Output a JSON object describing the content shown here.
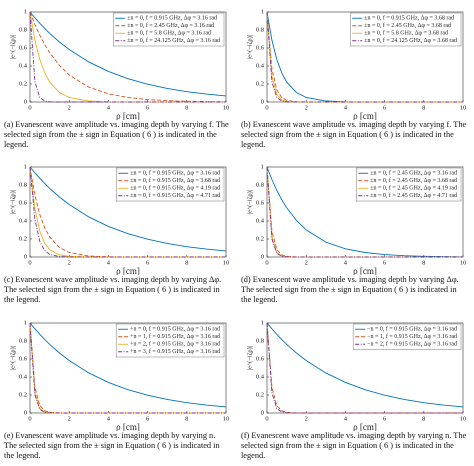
{
  "chart_data": [
    {
      "type": "line",
      "xlabel": "ρ [cm]",
      "ylabel": "|e^(−iζρ)|",
      "legend": "upper right",
      "grid": false,
      "xlim": [
        0,
        10
      ],
      "ylim": [
        0,
        1
      ],
      "xticks": [
        0,
        2,
        4,
        6,
        8,
        10
      ],
      "yticks": [
        0,
        0.2,
        0.4,
        0.6,
        0.8,
        1
      ],
      "x": [
        0,
        0.25,
        0.5,
        0.75,
        1,
        1.5,
        2,
        3,
        4,
        5,
        6,
        7,
        8,
        9,
        10
      ],
      "series": [
        {
          "name": "±n = 0, f = 0.915 GHz, Δφ = 3.16 rad",
          "color": "#0072bd",
          "dash": "none",
          "values": [
            1,
            0.935,
            0.874,
            0.817,
            0.763,
            0.667,
            0.583,
            0.445,
            0.34,
            0.259,
            0.198,
            0.151,
            0.115,
            0.088,
            0.067
          ]
        },
        {
          "name": "±n = 0, f = 2.45 GHz, Δφ = 3.16 rad",
          "color": "#d95319",
          "dash": "4,2",
          "values": [
            1,
            0.861,
            0.741,
            0.638,
            0.549,
            0.407,
            0.301,
            0.165,
            0.091,
            0.05,
            0.027,
            0.015,
            0.008,
            0.005,
            0.002
          ]
        },
        {
          "name": "±n = 0, f = 5.8 GHz, Δφ = 3.16 rad",
          "color": "#edb120",
          "dash": "none",
          "values": [
            1,
            0.687,
            0.472,
            0.325,
            0.223,
            0.105,
            0.05,
            0.011,
            0.002,
            0,
            0,
            0,
            0,
            0,
            0
          ]
        },
        {
          "name": "±n = 0, f = 24.125 GHz, Δφ = 3.16 rad",
          "color": "#7e2f8e",
          "dash": "4,1.5,1,1.5",
          "values": [
            1,
            0.223,
            0.05,
            0.011,
            0.002,
            0,
            0,
            0,
            0,
            0,
            0,
            0,
            0,
            0,
            0
          ]
        }
      ],
      "caption": "(a) Evanescent wave amplitude vs. imaging depth by varying f. The selected sign from the ± sign in Equation ( 6 ) is indicated in the legend."
    },
    {
      "type": "line",
      "xlabel": "ρ [cm]",
      "ylabel": "|e^(−iζρ)|",
      "legend": "upper right",
      "grid": false,
      "xlim": [
        0,
        10
      ],
      "ylim": [
        0,
        1
      ],
      "xticks": [
        0,
        2,
        4,
        6,
        8,
        10
      ],
      "yticks": [
        0,
        0.2,
        0.4,
        0.6,
        0.8,
        1
      ],
      "x": [
        0,
        0.25,
        0.5,
        0.75,
        1,
        1.5,
        2,
        3,
        4,
        5,
        6,
        7,
        8,
        9,
        10
      ],
      "series": [
        {
          "name": "±n = 0, f = 0.915 GHz, Δφ = 3.68 rad",
          "color": "#0072bd",
          "dash": "none",
          "values": [
            1,
            0.687,
            0.472,
            0.325,
            0.223,
            0.105,
            0.05,
            0.011,
            0.002,
            0,
            0,
            0,
            0,
            0,
            0
          ]
        },
        {
          "name": "±n = 0, f = 2.45 GHz, Δφ = 3.68 rad",
          "color": "#d95319",
          "dash": "4,2",
          "values": [
            1,
            0.368,
            0.135,
            0.05,
            0.018,
            0.002,
            0,
            0,
            0,
            0,
            0,
            0,
            0,
            0,
            0
          ]
        },
        {
          "name": "±n = 0, f = 5.8 GHz, Δφ = 3.68 rad",
          "color": "#edb120",
          "dash": "none",
          "values": [
            1,
            0.287,
            0.082,
            0.024,
            0.007,
            0.001,
            0,
            0,
            0,
            0,
            0,
            0,
            0,
            0,
            0
          ]
        },
        {
          "name": "±n = 0, f = 24.125 GHz, Δφ = 3.68 rad",
          "color": "#7e2f8e",
          "dash": "4,1.5,1,1.5",
          "values": [
            1,
            0.223,
            0.05,
            0.011,
            0.002,
            0,
            0,
            0,
            0,
            0,
            0,
            0,
            0,
            0,
            0
          ]
        }
      ],
      "caption": "(b) Evanescent wave amplitude vs. imaging depth by varying f. The selected sign from the ± sign in Equation ( 6 ) is indicated in the legend."
    },
    {
      "type": "line",
      "xlabel": "ρ [cm]",
      "ylabel": "|e^(−iζρ)|",
      "legend": "upper right",
      "grid": false,
      "xlim": [
        0,
        10
      ],
      "ylim": [
        0,
        1
      ],
      "xticks": [
        0,
        2,
        4,
        6,
        8,
        10
      ],
      "yticks": [
        0,
        0.2,
        0.4,
        0.6,
        0.8,
        1
      ],
      "x": [
        0,
        0.25,
        0.5,
        0.75,
        1,
        1.5,
        2,
        3,
        4,
        5,
        6,
        7,
        8,
        9,
        10
      ],
      "series": [
        {
          "name": "±n = 0, f = 0.915 GHz, Δφ = 3.16 rad",
          "color": "#0072bd",
          "dash": "none",
          "values": [
            1,
            0.935,
            0.874,
            0.817,
            0.763,
            0.667,
            0.583,
            0.445,
            0.34,
            0.259,
            0.198,
            0.151,
            0.115,
            0.088,
            0.067
          ]
        },
        {
          "name": "±n = 0, f = 0.915 GHz, Δφ = 3.68 rad",
          "color": "#d95319",
          "dash": "4,2",
          "values": [
            1,
            0.687,
            0.472,
            0.325,
            0.223,
            0.105,
            0.05,
            0.011,
            0.002,
            0,
            0,
            0,
            0,
            0,
            0
          ]
        },
        {
          "name": "±n = 0, f = 0.915 GHz, Δφ = 4.19 rad",
          "color": "#edb120",
          "dash": "none",
          "values": [
            1,
            0.535,
            0.287,
            0.153,
            0.082,
            0.024,
            0.007,
            0.001,
            0,
            0,
            0,
            0,
            0,
            0,
            0
          ]
        },
        {
          "name": "±n = 0, f = 0.915 GHz, Δφ = 4.71 rad",
          "color": "#7e2f8e",
          "dash": "4,1.5,1,1.5",
          "values": [
            1,
            0.417,
            0.174,
            0.072,
            0.03,
            0.005,
            0.001,
            0,
            0,
            0,
            0,
            0,
            0,
            0,
            0
          ]
        }
      ],
      "caption": "(c) Evanescent wave amplitude vs. imaging depth by varying Δφ. The selected sign from the ± sign in Equation ( 6 ) is indicated in the legend."
    },
    {
      "type": "line",
      "xlabel": "ρ [cm]",
      "ylabel": "|e^(−iζρ)|",
      "legend": "upper right",
      "grid": false,
      "xlim": [
        0,
        10
      ],
      "ylim": [
        0,
        1
      ],
      "xticks": [
        0,
        2,
        4,
        6,
        8,
        10
      ],
      "yticks": [
        0,
        0.2,
        0.4,
        0.6,
        0.8,
        1
      ],
      "x": [
        0,
        0.25,
        0.5,
        0.75,
        1,
        1.5,
        2,
        3,
        4,
        5,
        6,
        7,
        8,
        9,
        10
      ],
      "series": [
        {
          "name": "±n = 0, f = 2.45 GHz, Δφ = 3.16 rad",
          "color": "#0072bd",
          "dash": "none",
          "values": [
            1,
            0.861,
            0.741,
            0.638,
            0.549,
            0.407,
            0.301,
            0.165,
            0.091,
            0.05,
            0.027,
            0.015,
            0.008,
            0.005,
            0.002
          ]
        },
        {
          "name": "±n = 0, f = 2.45 GHz, Δφ = 3.68 rad",
          "color": "#d95319",
          "dash": "4,2",
          "values": [
            1,
            0.287,
            0.082,
            0.024,
            0.007,
            0.001,
            0,
            0,
            0,
            0,
            0,
            0,
            0,
            0,
            0
          ]
        },
        {
          "name": "±n = 0, f = 2.45 GHz, Δφ = 4.19 rad",
          "color": "#edb120",
          "dash": "none",
          "values": [
            1,
            0.223,
            0.05,
            0.011,
            0.002,
            0,
            0,
            0,
            0,
            0,
            0,
            0,
            0,
            0,
            0
          ]
        },
        {
          "name": "±n = 0, f = 2.45 GHz, Δφ = 4.71 rad",
          "color": "#7e2f8e",
          "dash": "4,1.5,1,1.5",
          "values": [
            1,
            0.2,
            0.04,
            0.008,
            0.002,
            0,
            0,
            0,
            0,
            0,
            0,
            0,
            0,
            0,
            0
          ]
        }
      ],
      "caption": "(d) Evanescent wave amplitude vs. imaging depth by varying Δφ. The selected sign from the ± sign in Equation ( 6 ) is indicated in the legend."
    },
    {
      "type": "line",
      "xlabel": "ρ [cm]",
      "ylabel": "|e^(−iζρ)|",
      "legend": "upper right",
      "grid": false,
      "xlim": [
        0,
        10
      ],
      "ylim": [
        0,
        1
      ],
      "xticks": [
        0,
        2,
        4,
        6,
        8,
        10
      ],
      "yticks": [
        0,
        0.2,
        0.4,
        0.6,
        0.8,
        1
      ],
      "x": [
        0,
        0.25,
        0.5,
        0.75,
        1,
        1.5,
        2,
        3,
        4,
        5,
        6,
        7,
        8,
        9,
        10
      ],
      "series": [
        {
          "name": "+n = 0, f = 0.915 GHz, Δφ = 3.16 rad",
          "color": "#0072bd",
          "dash": "none",
          "values": [
            1,
            0.935,
            0.874,
            0.817,
            0.763,
            0.667,
            0.583,
            0.445,
            0.34,
            0.259,
            0.198,
            0.151,
            0.115,
            0.088,
            0.067
          ]
        },
        {
          "name": "+n = 1, f = 0.915 GHz, Δφ = 3.16 rad",
          "color": "#d95319",
          "dash": "4,2",
          "values": [
            1,
            0.287,
            0.082,
            0.024,
            0.007,
            0.001,
            0,
            0,
            0,
            0,
            0,
            0,
            0,
            0,
            0
          ]
        },
        {
          "name": "+n = 2, f = 0.915 GHz, Δφ = 3.16 rad",
          "color": "#edb120",
          "dash": "none",
          "values": [
            1,
            0.223,
            0.05,
            0.011,
            0.002,
            0,
            0,
            0,
            0,
            0,
            0,
            0,
            0,
            0,
            0
          ]
        },
        {
          "name": "+n = 3, f = 0.915 GHz, Δφ = 3.16 rad",
          "color": "#7e2f8e",
          "dash": "4,1.5,1,1.5",
          "values": [
            1,
            0.2,
            0.04,
            0.008,
            0.002,
            0,
            0,
            0,
            0,
            0,
            0,
            0,
            0,
            0,
            0
          ]
        }
      ],
      "caption": "(e) Evanescent wave amplitude vs. imaging depth by varying n. The selected sign from the ± sign in Equation ( 6 ) is indicated in the legend."
    },
    {
      "type": "line",
      "xlabel": "ρ [cm]",
      "ylabel": "|e^(−iζρ)|",
      "legend": "upper right",
      "grid": false,
      "xlim": [
        0,
        10
      ],
      "ylim": [
        0,
        1
      ],
      "xticks": [
        0,
        2,
        4,
        6,
        8,
        10
      ],
      "yticks": [
        0,
        0.2,
        0.4,
        0.6,
        0.8,
        1
      ],
      "x": [
        0,
        0.25,
        0.5,
        0.75,
        1,
        1.5,
        2,
        3,
        4,
        5,
        6,
        7,
        8,
        9,
        10
      ],
      "series": [
        {
          "name": "−n = 0, f = 0.915 GHz, Δφ = 3.16 rad",
          "color": "#0072bd",
          "dash": "none",
          "values": [
            1,
            0.935,
            0.874,
            0.817,
            0.763,
            0.667,
            0.583,
            0.445,
            0.34,
            0.259,
            0.198,
            0.151,
            0.115,
            0.088,
            0.067
          ]
        },
        {
          "name": "−n = 1, f = 0.915 GHz, Δφ = 3.16 rad",
          "color": "#d95319",
          "dash": "4,2",
          "values": [
            1,
            0.287,
            0.082,
            0.024,
            0.007,
            0.001,
            0,
            0,
            0,
            0,
            0,
            0,
            0,
            0,
            0
          ]
        },
        {
          "name": "−n = 2, f = 0.915 GHz, Δφ = 3.16 rad",
          "color": "#7e2f8e",
          "dash": "4,1.5,1,1.5",
          "values": [
            1,
            0.223,
            0.05,
            0.011,
            0.002,
            0,
            0,
            0,
            0,
            0,
            0,
            0,
            0,
            0,
            0
          ]
        }
      ],
      "caption": "(f) Evanescent wave amplitude vs. imaging depth by varying n. The selected sign from the ± sign in Equation ( 6 ) is indicated in the legend."
    }
  ]
}
